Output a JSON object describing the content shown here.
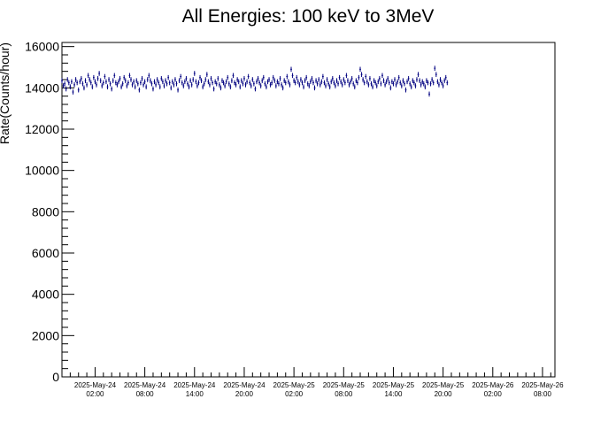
{
  "chart_data": {
    "type": "scatter",
    "title": "All Energies:  100 keV to 3MeV",
    "ylabel": "Rate(Counts/hour)",
    "xlabel": "",
    "ylim": [
      0,
      16200
    ],
    "xlim": [
      "2025-05-23 22:00",
      "2025-05-26 09:30"
    ],
    "y_ticks": [
      0,
      2000,
      4000,
      6000,
      8000,
      10000,
      12000,
      14000,
      16000
    ],
    "y_tick_labels": [
      "0",
      "2000",
      "4000",
      "6000",
      "8000",
      "10000",
      "12000",
      "14000",
      "16000"
    ],
    "x_ticks": [
      "2025-05-24 02:00",
      "2025-05-24 08:00",
      "2025-05-24 14:00",
      "2025-05-24 20:00",
      "2025-05-25 02:00",
      "2025-05-25 08:00",
      "2025-05-25 14:00",
      "2025-05-25 20:00",
      "2025-05-26 02:00",
      "2025-05-26 08:00"
    ],
    "x_tick_labels": [
      {
        "date": "2025-May-24",
        "time": "02:00"
      },
      {
        "date": "2025-May-24",
        "time": "08:00"
      },
      {
        "date": "2025-May-24",
        "time": "14:00"
      },
      {
        "date": "2025-May-24",
        "time": "20:00"
      },
      {
        "date": "2025-May-25",
        "time": "02:00"
      },
      {
        "date": "2025-May-25",
        "time": "08:00"
      },
      {
        "date": "2025-May-25",
        "time": "14:00"
      },
      {
        "date": "2025-May-25",
        "time": "20:00"
      },
      {
        "date": "2025-May-26",
        "time": "02:00"
      },
      {
        "date": "2025-May-26",
        "time": "08:00"
      }
    ],
    "grid": false,
    "series_color": "#000080",
    "series": [
      {
        "points_start": "2025-05-23 22:00",
        "points_step_minutes": 10,
        "error": 120,
        "values": [
          14350,
          14100,
          14200,
          13950,
          14400,
          14250,
          14050,
          14300,
          13800,
          14150,
          14400,
          14250,
          13900,
          14300,
          14450,
          14200,
          14000,
          14350,
          14150,
          14600,
          14400,
          14250,
          14050,
          14500,
          14300,
          14150,
          14450,
          14700,
          14350,
          14100,
          14250,
          14550,
          14300,
          14050,
          14400,
          14200,
          13950,
          14350,
          14600,
          14250,
          14150,
          14300,
          14450,
          14050,
          14200,
          14500,
          14350,
          14100,
          14250,
          14600,
          14400,
          14150,
          14300,
          14050,
          14350,
          14200,
          13900,
          14250,
          14450,
          14150,
          14300,
          14050,
          14400,
          14600,
          14350,
          14200,
          13950,
          14300,
          14150,
          14400,
          14250,
          14050,
          14450,
          14300,
          14100,
          14350,
          14200,
          14500,
          14250,
          14000,
          14300,
          14150,
          14400,
          14200,
          13900,
          14350,
          14550,
          14250,
          14100,
          14300,
          14450,
          14200,
          14050,
          14350,
          14150,
          14400,
          14700,
          14300,
          14100,
          14250,
          14500,
          14350,
          14050,
          14200,
          14400,
          14650,
          14300,
          14150,
          14450,
          14250,
          13950,
          14300,
          14200,
          14450,
          14150,
          14000,
          14350,
          14250,
          14100,
          14300,
          14500,
          14200,
          14050,
          14350,
          14600,
          14250,
          14150,
          14400,
          14300,
          14050,
          14350,
          14200,
          14450,
          14150,
          14300,
          14550,
          14250,
          14100,
          14400,
          14200,
          13950,
          14300,
          14450,
          14250,
          14100,
          14350,
          14500,
          14200,
          14050,
          14300,
          14400,
          14150,
          14250,
          14500,
          14350,
          14100,
          14300,
          14200,
          14450,
          14150,
          14000,
          14350,
          14250,
          14550,
          14300,
          14150,
          14900,
          14600,
          14350,
          14250,
          14500,
          14300,
          14150,
          14400,
          14250,
          14050,
          14350,
          14500,
          14200,
          14100,
          14300,
          14450,
          14250,
          14000,
          14350,
          14200,
          14400,
          14150,
          14300,
          14550,
          14250,
          14100,
          14400,
          14200,
          14050,
          14300,
          14450,
          14250,
          14100,
          14350,
          14200,
          14500,
          14300,
          14150,
          14400,
          14250,
          14600,
          14350,
          14150,
          14300,
          14450,
          14200,
          14050,
          14350,
          14250,
          14500,
          14900,
          14650,
          14400,
          14250,
          14550,
          14300,
          14150,
          14450,
          14200,
          14050,
          14350,
          14250,
          14100,
          14300,
          14450,
          14200,
          14600,
          14350,
          14150,
          14300,
          14450,
          14250,
          14000,
          14300,
          14200,
          14400,
          14150,
          14300,
          14500,
          14250,
          14100,
          14350,
          14200,
          13900,
          14300,
          14450,
          14200,
          14050,
          14350,
          14250,
          14100,
          14400,
          14650,
          14350,
          14150,
          14300,
          14200,
          14050,
          14350,
          14250,
          13700,
          14200,
          14400,
          14250,
          14950,
          14650,
          14300,
          14150,
          14400,
          14250,
          14100,
          14350,
          14500,
          14250
        ]
      }
    ]
  }
}
